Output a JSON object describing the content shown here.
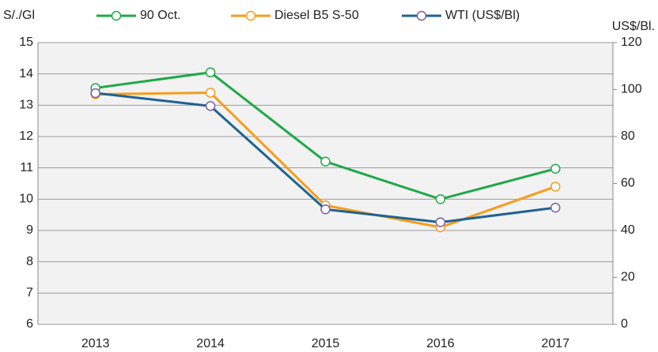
{
  "chart_data": {
    "type": "line",
    "y_label": "S/./Gl",
    "y2_label": "US$/Bl.",
    "categories": [
      "2013",
      "2014",
      "2015",
      "2016",
      "2017"
    ],
    "series": [
      {
        "name": "90 Oct.",
        "color": "#1fa84a",
        "marker_color": "#1fa84a",
        "values": [
          13.55,
          14.05,
          11.2,
          10.0,
          10.97
        ]
      },
      {
        "name": "Diesel B5 S-50",
        "color": "#f59d1c",
        "marker_color": "#f59d1c",
        "values": [
          13.35,
          13.4,
          9.8,
          9.1,
          10.4
        ]
      },
      {
        "name": "WTI (US$/Bl)",
        "color": "#1f6391",
        "marker_color": "#7b5ea7",
        "axis": "y2",
        "values": [
          98.5,
          93,
          49,
          43.5,
          49.7
        ]
      }
    ],
    "ylim": [
      6,
      15
    ],
    "yticks": [
      6,
      7,
      8,
      9,
      10,
      11,
      12,
      13,
      14,
      15
    ],
    "y2lim": [
      0,
      120
    ],
    "y2ticks": [
      0,
      20,
      40,
      60,
      80,
      100,
      120
    ],
    "grid": true,
    "legend": "top"
  }
}
